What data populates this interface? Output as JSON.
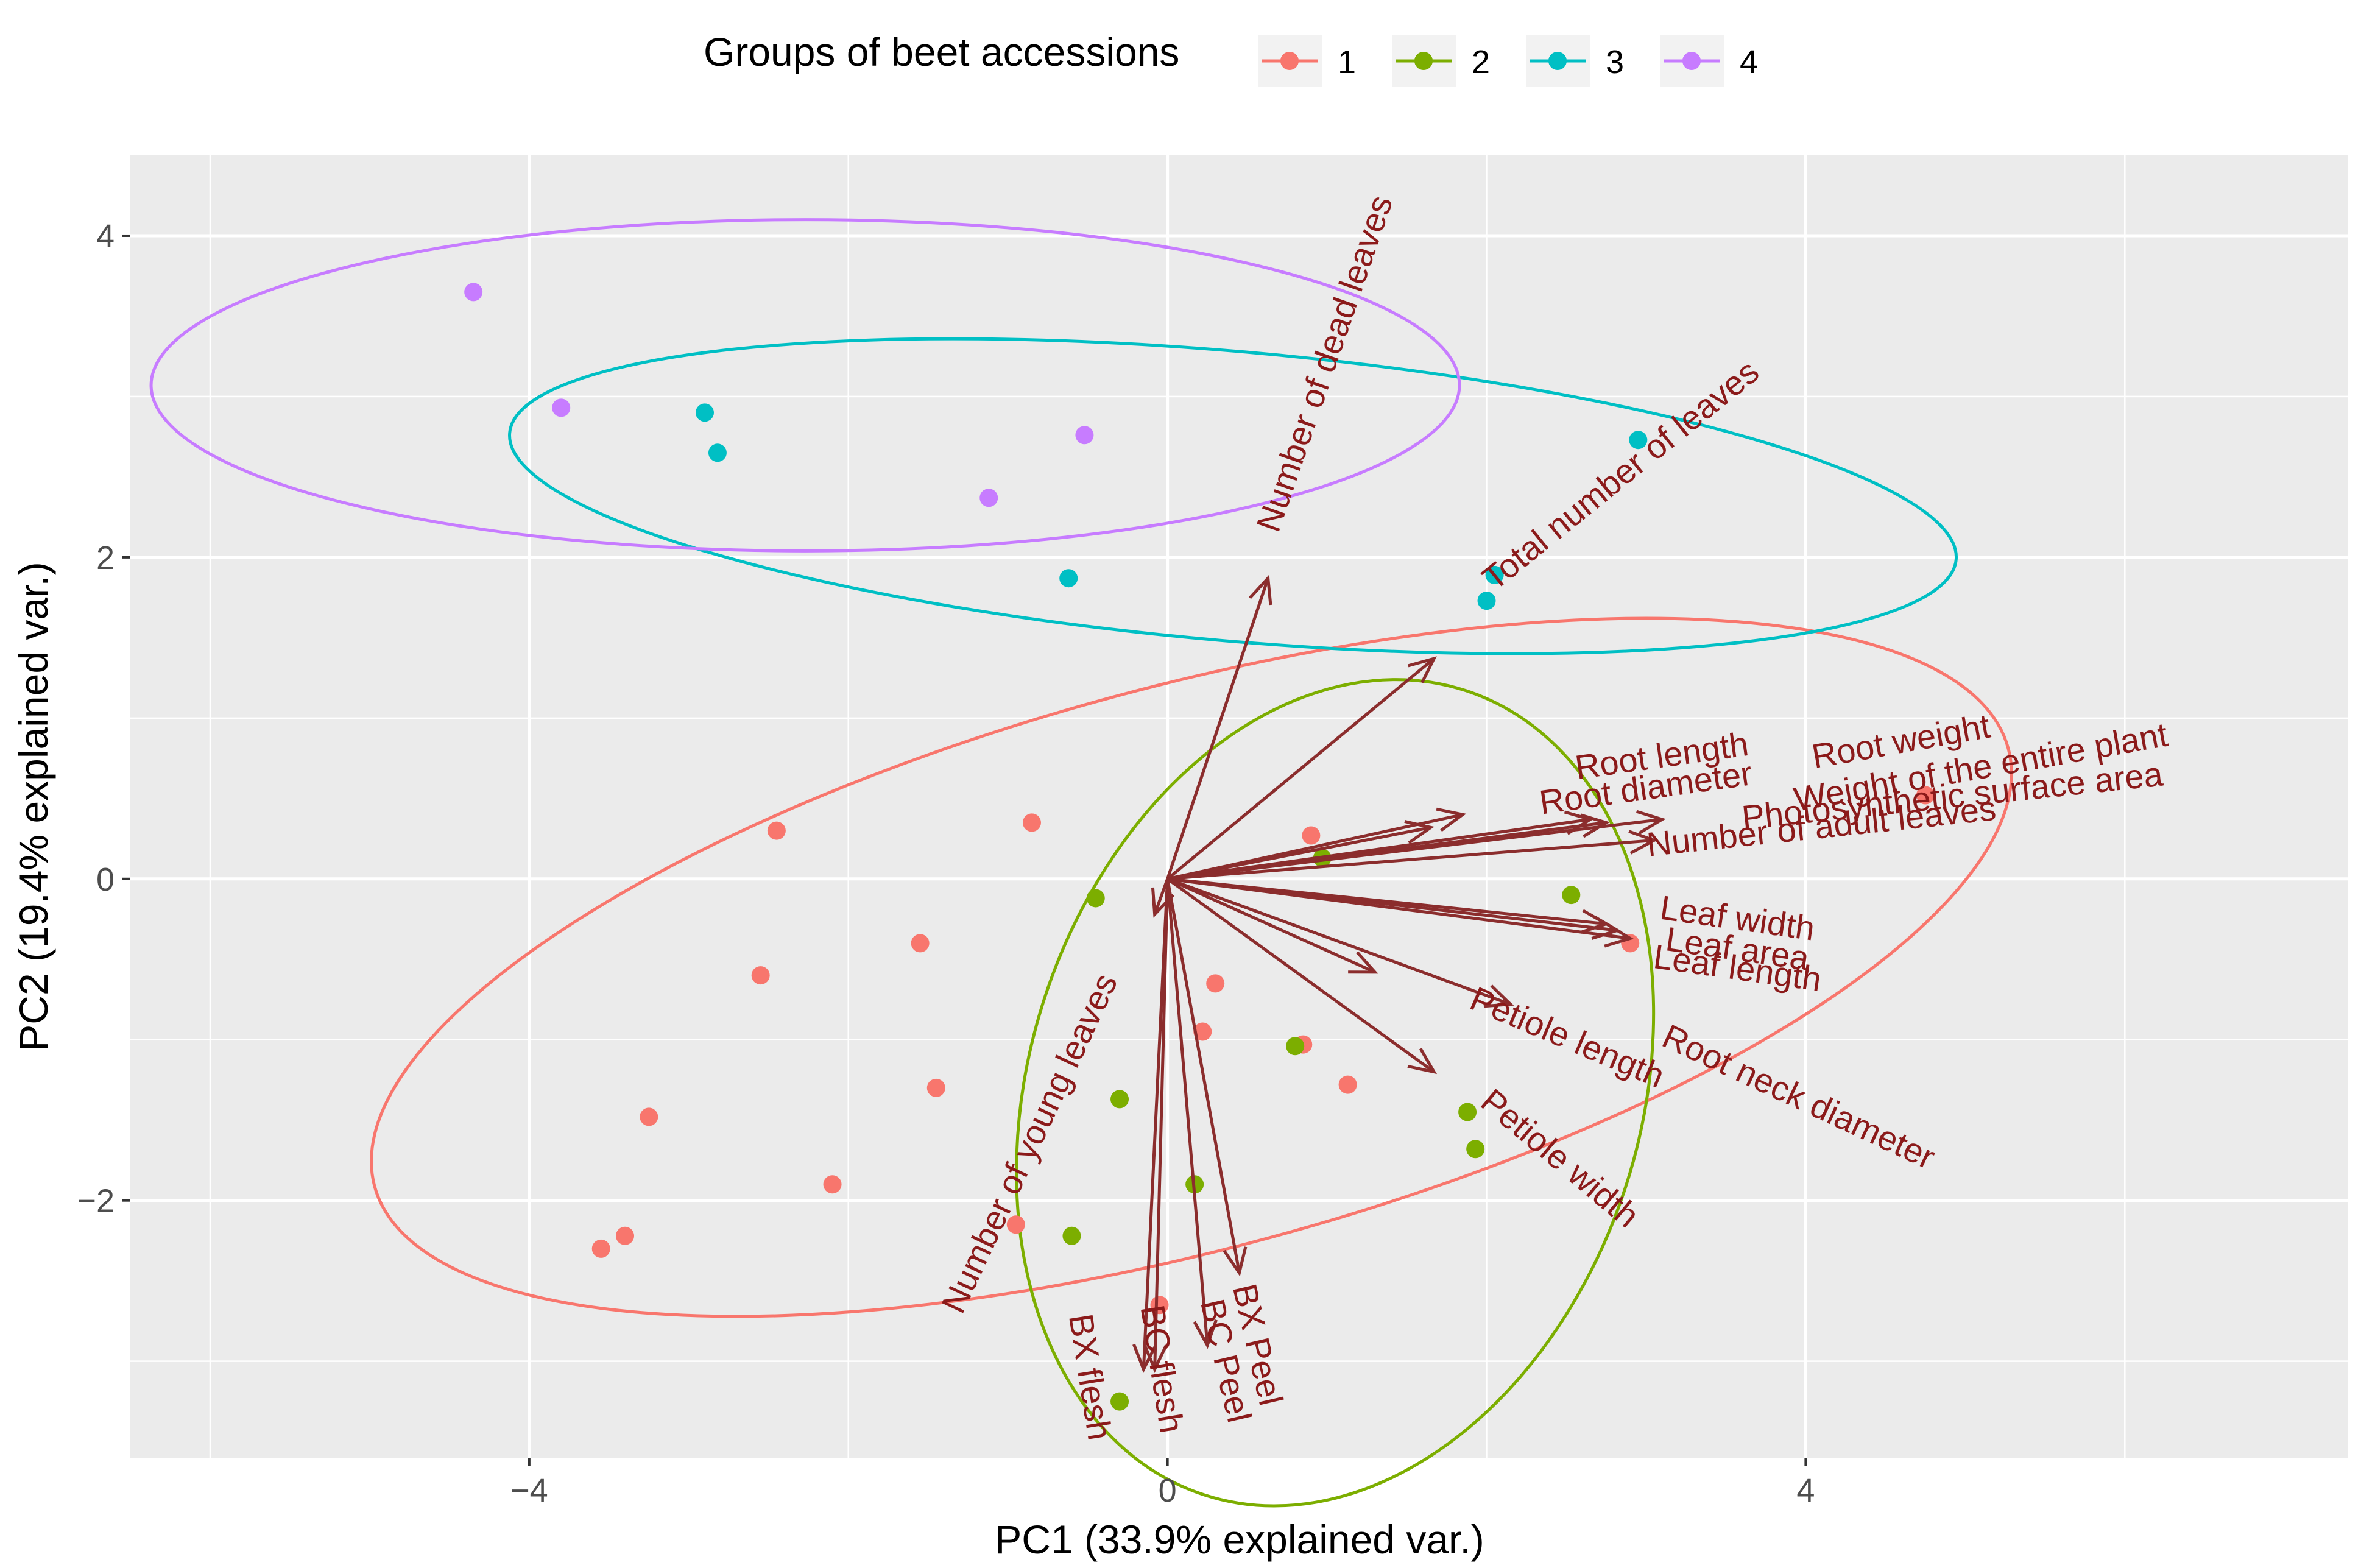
{
  "chart_data": {
    "type": "scatter",
    "subtype": "pca-biplot",
    "title": "",
    "xlabel": "PC1 (33.9% explained var.)",
    "ylabel": "PC2 (19.4% explained var.)",
    "xlim": [
      -6.5,
      7.4
    ],
    "ylim": [
      -3.6,
      4.5
    ],
    "xticks": [
      -4,
      0,
      4
    ],
    "xtick_labels": [
      "−4",
      "0",
      "4"
    ],
    "yticks": [
      -2,
      0,
      2,
      4
    ],
    "ytick_labels": [
      "−2",
      "0",
      "2",
      "4"
    ],
    "x_minor_gridlines": [
      -6,
      -2,
      2,
      6
    ],
    "y_minor_gridlines": [
      -3,
      -1,
      1,
      3
    ],
    "grid": true,
    "legend": {
      "title": "Groups of beet accessions",
      "position": "top",
      "entries": [
        "1",
        "2",
        "3",
        "4"
      ]
    },
    "colors": {
      "panel_bg": "#ebebeb",
      "grid": "#ffffff",
      "arrow": "#8b2d2d",
      "loading_text": "#8b1a1a",
      "g1": "#f8766d",
      "g2": "#7cae00",
      "g3": "#00bfc4",
      "g4": "#c77cff"
    },
    "series": [
      {
        "name": "1",
        "color": "#f8766d",
        "points": [
          [
            -2.45,
            0.3
          ],
          [
            -0.85,
            0.35
          ],
          [
            -1.55,
            -0.4
          ],
          [
            -2.55,
            -0.6
          ],
          [
            -3.25,
            -1.48
          ],
          [
            -1.45,
            -1.3
          ],
          [
            -2.1,
            -1.9
          ],
          [
            -3.55,
            -2.3
          ],
          [
            -3.4,
            -2.22
          ],
          [
            -0.95,
            -2.15
          ],
          [
            -0.05,
            -2.65
          ],
          [
            0.3,
            -0.65
          ],
          [
            0.22,
            -0.95
          ],
          [
            0.9,
            0.27
          ],
          [
            0.85,
            -1.03
          ],
          [
            1.13,
            -1.28
          ],
          [
            2.9,
            -0.4
          ],
          [
            4.75,
            0.52
          ]
        ],
        "ellipse": {
          "center": [
            0.15,
            -0.55
          ],
          "a": 5.3,
          "b": 1.75,
          "angle_deg": 15
        }
      },
      {
        "name": "2",
        "color": "#7cae00",
        "points": [
          [
            -0.45,
            -0.12
          ],
          [
            0.97,
            0.13
          ],
          [
            2.53,
            -0.1
          ],
          [
            -0.3,
            -1.37
          ],
          [
            0.8,
            -1.04
          ],
          [
            1.88,
            -1.45
          ],
          [
            1.93,
            -1.68
          ],
          [
            0.17,
            -1.9
          ],
          [
            -0.6,
            -2.22
          ],
          [
            -0.3,
            -3.25
          ]
        ],
        "ellipse": {
          "center": [
            1.05,
            -1.33
          ],
          "a": 2.65,
          "b": 1.9,
          "angle_deg": 72
        }
      },
      {
        "name": "3",
        "color": "#00bfc4",
        "points": [
          [
            -2.9,
            2.9
          ],
          [
            -2.82,
            2.65
          ],
          [
            -0.62,
            1.87
          ],
          [
            2.0,
            1.73
          ],
          [
            2.05,
            1.89
          ],
          [
            2.95,
            2.73
          ]
        ],
        "ellipse": {
          "center": [
            0.41,
            2.38
          ],
          "a": 4.55,
          "b": 0.9,
          "angle_deg": -5
        }
      },
      {
        "name": "4",
        "color": "#c77cff",
        "points": [
          [
            -4.35,
            3.65
          ],
          [
            -3.8,
            2.93
          ],
          [
            -1.12,
            2.37
          ],
          [
            -0.52,
            2.76
          ]
        ],
        "ellipse": {
          "center": [
            -2.27,
            3.07
          ],
          "a": 4.1,
          "b": 1.03,
          "angle_deg": 0
        }
      }
    ],
    "loadings": [
      {
        "name": "Number of dead leaves",
        "x": 0.63,
        "y": 1.87,
        "label_x": 1.0,
        "label_y": 3.2,
        "label_angle": -71
      },
      {
        "name": "Total number of leaves",
        "x": 1.67,
        "y": 1.37,
        "label_x": 2.85,
        "label_y": 2.5,
        "label_angle": -39
      },
      {
        "name": "Root length",
        "x": 1.85,
        "y": 0.4,
        "label_x": 3.1,
        "label_y": 0.75,
        "label_angle": -8
      },
      {
        "name": "Root diameter",
        "x": 1.65,
        "y": 0.32,
        "label_x": 3.0,
        "label_y": 0.55,
        "label_angle": -8
      },
      {
        "name": "Root weight",
        "x": 2.75,
        "y": 0.35,
        "label_x": 4.6,
        "label_y": 0.84,
        "label_angle": -10
      },
      {
        "name": "Weight of the entire plant",
        "x": 2.65,
        "y": 0.37,
        "label_x": 5.1,
        "label_y": 0.68,
        "label_angle": -10
      },
      {
        "name": "Photosynthetic surface area",
        "x": 3.1,
        "y": 0.37,
        "label_x": 4.92,
        "label_y": 0.5,
        "label_angle": -6
      },
      {
        "name": "Number of adult leaves",
        "x": 3.05,
        "y": 0.24,
        "label_x": 4.1,
        "label_y": 0.31,
        "label_angle": -6
      },
      {
        "name": "Leaf width",
        "x": 2.75,
        "y": -0.28,
        "label_x": 3.57,
        "label_y": -0.26,
        "label_angle": 8
      },
      {
        "name": "Leaf area",
        "x": 2.82,
        "y": -0.32,
        "label_x": 3.57,
        "label_y": -0.45,
        "label_angle": 8
      },
      {
        "name": "Leaf length",
        "x": 2.9,
        "y": -0.37,
        "label_x": 3.57,
        "label_y": -0.57,
        "label_angle": 8
      },
      {
        "name": "Petiole length",
        "x": 2.15,
        "y": -0.78,
        "label_x": 2.5,
        "label_y": -1.0,
        "label_angle": 23
      },
      {
        "name": "Root neck diameter",
        "x": 1.67,
        "y": -1.2,
        "label_x": 3.95,
        "label_y": -1.37,
        "label_angle": 25
      },
      {
        "name": "Petiole width",
        "x": 1.3,
        "y": -0.58,
        "label_x": 2.45,
        "label_y": -1.75,
        "label_angle": 40
      },
      {
        "name": "Number of young leaves",
        "x": -0.08,
        "y": -0.22,
        "label_x": -0.85,
        "label_y": -1.65,
        "label_angle": -65
      },
      {
        "name": "BX flesh",
        "x": -0.15,
        "y": -3.05,
        "label_x": -0.5,
        "label_y": -3.1,
        "label_angle": 81
      },
      {
        "name": "BC flesh",
        "x": -0.08,
        "y": -3.05,
        "label_x": -0.05,
        "label_y": -3.05,
        "label_angle": 81
      },
      {
        "name": "BC Peel",
        "x": 0.25,
        "y": -2.9,
        "label_x": 0.35,
        "label_y": -3.0,
        "label_angle": 77
      },
      {
        "name": "BX Peel",
        "x": 0.45,
        "y": -2.45,
        "label_x": 0.55,
        "label_y": -2.9,
        "label_angle": 77
      }
    ]
  }
}
